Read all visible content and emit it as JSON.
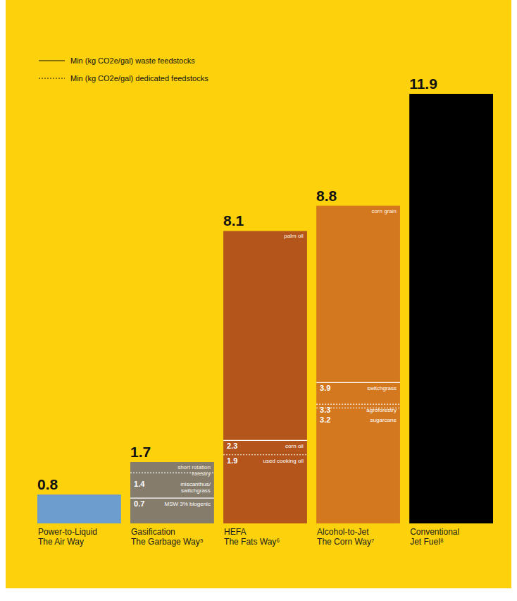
{
  "chart_data": {
    "type": "bar",
    "categories": [
      "Power-to-Liquid\nThe Air Way",
      "Gasification\nThe Garbage Way⁵",
      "HEFA\nThe Fats Way⁶",
      "Alcohol-to-Jet\nThe Corn Way⁷",
      "Conventional\nJet Fuel⁸"
    ],
    "values": [
      0.8,
      1.7,
      8.1,
      8.8,
      11.9
    ],
    "colors": [
      "#6d9ccf",
      "#857c6c",
      "#b4561c",
      "#d4781f",
      "#000000"
    ],
    "ylim": [
      0,
      11.9
    ],
    "data_labels": true,
    "tick_labels": "x",
    "legend": "top-left",
    "legend_items": [
      {
        "label": "Min (kg CO2e/gal) waste feedstocks",
        "line_style": "solid"
      },
      {
        "label": "Min (kg CO2e/gal) dedicated feedstocks",
        "line_style": "dotted"
      }
    ],
    "top_labels": [
      null,
      "short rotation forestry",
      "palm oil",
      "corn grain",
      null
    ],
    "feedstock_lines": [
      [],
      [
        {
          "value": 1.4,
          "label": "miscanthus/ switchgrass",
          "line_style": "dotted"
        },
        {
          "value": 0.7,
          "label": "MSW 3% biogenic",
          "line_style": "solid"
        }
      ],
      [
        {
          "value": 2.3,
          "label": "corn oil",
          "line_style": "solid"
        },
        {
          "value": 1.9,
          "label": "used cooking oil",
          "line_style": "dotted"
        }
      ],
      [
        {
          "value": 3.9,
          "label": "switchgrass",
          "line_style": "solid"
        },
        {
          "value": 3.3,
          "label": "agroforestry",
          "line_style": "dotted"
        },
        {
          "value": 3.2,
          "label": "sugarcane",
          "line_style": "dotted"
        }
      ],
      []
    ]
  }
}
